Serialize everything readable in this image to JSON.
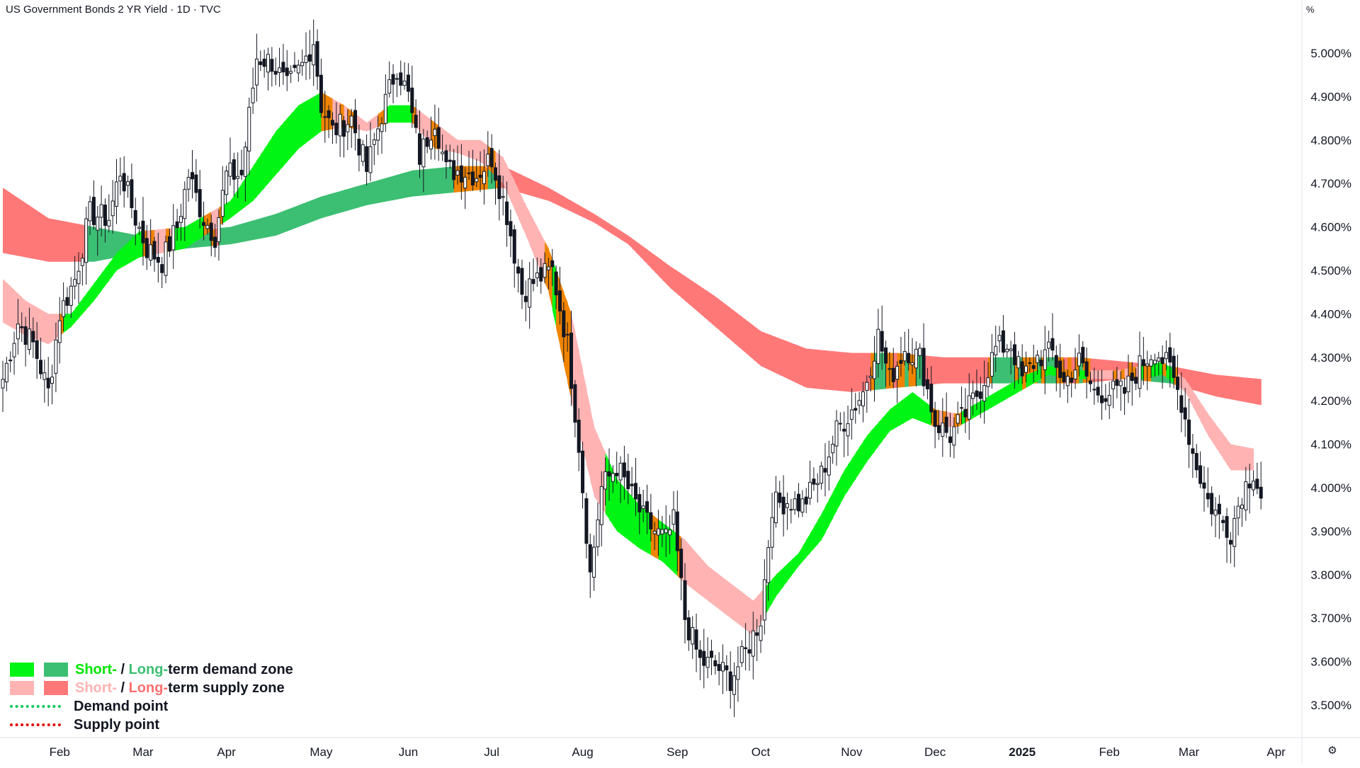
{
  "header": {
    "title": "US Government Bonds 2 YR Yield · 1D · TVC"
  },
  "axis": {
    "unit_label": "%"
  },
  "legend": {
    "row1": {
      "short": "Short-",
      "sep": " / ",
      "long": "Long-",
      "rest": "term demand zone"
    },
    "row2": {
      "short": "Short-",
      "sep": " / ",
      "long": "Long-",
      "rest": "term supply zone"
    },
    "row3": "Demand point",
    "row4": "Supply point"
  },
  "colors": {
    "short_demand": "#00f514",
    "long_demand": "#3cbf72",
    "short_supply": "#ffb3b3",
    "long_supply": "#ff7878",
    "neutral_zone": "#f08400",
    "candle": "#131722"
  },
  "settings_icon": "gear-icon",
  "chart_data": {
    "type": "candlestick",
    "y_unit": "%",
    "ylim": [
      3.445,
      5.06
    ],
    "y_ticks": [
      {
        "v": 5.0,
        "label": "5.000%"
      },
      {
        "v": 4.9,
        "label": "4.900%"
      },
      {
        "v": 4.8,
        "label": "4.800%"
      },
      {
        "v": 4.7,
        "label": "4.700%"
      },
      {
        "v": 4.6,
        "label": "4.600%"
      },
      {
        "v": 4.5,
        "label": "4.500%"
      },
      {
        "v": 4.4,
        "label": "4.400%"
      },
      {
        "v": 4.3,
        "label": "4.300%"
      },
      {
        "v": 4.2,
        "label": "4.200%"
      },
      {
        "v": 4.1,
        "label": "4.100%"
      },
      {
        "v": 4.0,
        "label": "4.000%"
      },
      {
        "v": 3.9,
        "label": "3.900%"
      },
      {
        "v": 3.8,
        "label": "3.800%"
      },
      {
        "v": 3.7,
        "label": "3.700%"
      },
      {
        "v": 3.6,
        "label": "3.600%"
      },
      {
        "v": 3.5,
        "label": "3.500%"
      }
    ],
    "x_range": [
      0,
      344
    ],
    "x_ticks": [
      {
        "t": 15,
        "label": "Feb"
      },
      {
        "t": 37,
        "label": "Mar"
      },
      {
        "t": 59,
        "label": "Apr"
      },
      {
        "t": 84,
        "label": "May"
      },
      {
        "t": 107,
        "label": "Jun"
      },
      {
        "t": 129,
        "label": "Jul"
      },
      {
        "t": 153,
        "label": "Aug"
      },
      {
        "t": 178,
        "label": "Sep"
      },
      {
        "t": 200,
        "label": "Oct"
      },
      {
        "t": 224,
        "label": "Nov"
      },
      {
        "t": 246,
        "label": "Dec"
      },
      {
        "t": 269,
        "label": "2025"
      },
      {
        "t": 292,
        "label": "Feb"
      },
      {
        "t": 313,
        "label": "Mar"
      },
      {
        "t": 336,
        "label": "Apr"
      }
    ],
    "path": [
      [
        0,
        4.25
      ],
      [
        4,
        4.38
      ],
      [
        8,
        4.33
      ],
      [
        12,
        4.22
      ],
      [
        15,
        4.4
      ],
      [
        19,
        4.48
      ],
      [
        23,
        4.63
      ],
      [
        28,
        4.62
      ],
      [
        31,
        4.73
      ],
      [
        35,
        4.62
      ],
      [
        38,
        4.55
      ],
      [
        42,
        4.52
      ],
      [
        46,
        4.6
      ],
      [
        49,
        4.72
      ],
      [
        53,
        4.62
      ],
      [
        56,
        4.58
      ],
      [
        59,
        4.72
      ],
      [
        63,
        4.72
      ],
      [
        67,
        4.99
      ],
      [
        71,
        4.98
      ],
      [
        75,
        4.92
      ],
      [
        79,
        4.97
      ],
      [
        82,
        5.03
      ],
      [
        84,
        4.88
      ],
      [
        87,
        4.82
      ],
      [
        92,
        4.85
      ],
      [
        96,
        4.73
      ],
      [
        100,
        4.86
      ],
      [
        104,
        4.97
      ],
      [
        107,
        4.9
      ],
      [
        110,
        4.76
      ],
      [
        114,
        4.85
      ],
      [
        117,
        4.73
      ],
      [
        121,
        4.73
      ],
      [
        125,
        4.72
      ],
      [
        129,
        4.76
      ],
      [
        133,
        4.63
      ],
      [
        137,
        4.45
      ],
      [
        141,
        4.48
      ],
      [
        145,
        4.5
      ],
      [
        149,
        4.33
      ],
      [
        152,
        4.1
      ],
      [
        155,
        3.8
      ],
      [
        158,
        4.0
      ],
      [
        162,
        4.05
      ],
      [
        166,
        3.98
      ],
      [
        169,
        3.93
      ],
      [
        172,
        3.9
      ],
      [
        175,
        3.88
      ],
      [
        177,
        3.92
      ],
      [
        180,
        3.7
      ],
      [
        184,
        3.6
      ],
      [
        188,
        3.59
      ],
      [
        192,
        3.56
      ],
      [
        196,
        3.62
      ],
      [
        200,
        3.7
      ],
      [
        203,
        3.96
      ],
      [
        207,
        3.97
      ],
      [
        211,
        3.96
      ],
      [
        216,
        4.03
      ],
      [
        220,
        4.13
      ],
      [
        224,
        4.18
      ],
      [
        227,
        4.22
      ],
      [
        231,
        4.35
      ],
      [
        234,
        4.25
      ],
      [
        238,
        4.32
      ],
      [
        242,
        4.3
      ],
      [
        246,
        4.15
      ],
      [
        250,
        4.12
      ],
      [
        254,
        4.17
      ],
      [
        258,
        4.23
      ],
      [
        262,
        4.32
      ],
      [
        266,
        4.33
      ],
      [
        269,
        4.25
      ],
      [
        273,
        4.3
      ],
      [
        277,
        4.31
      ],
      [
        280,
        4.24
      ],
      [
        284,
        4.29
      ],
      [
        288,
        4.22
      ],
      [
        292,
        4.22
      ],
      [
        296,
        4.22
      ],
      [
        300,
        4.28
      ],
      [
        304,
        4.32
      ],
      [
        308,
        4.27
      ],
      [
        311,
        4.2
      ],
      [
        314,
        4.08
      ],
      [
        318,
        3.97
      ],
      [
        321,
        3.93
      ],
      [
        324,
        3.9
      ],
      [
        327,
        3.99
      ],
      [
        330,
        4.04
      ],
      [
        332,
        3.98
      ]
    ],
    "long_band": [
      [
        0,
        4.69,
        4.54
      ],
      [
        12,
        4.62,
        4.52
      ],
      [
        24,
        4.6,
        4.52
      ],
      [
        36,
        4.58,
        4.54
      ],
      [
        48,
        4.59,
        4.55
      ],
      [
        60,
        4.6,
        4.56
      ],
      [
        72,
        4.63,
        4.58
      ],
      [
        84,
        4.67,
        4.62
      ],
      [
        96,
        4.7,
        4.65
      ],
      [
        108,
        4.73,
        4.67
      ],
      [
        120,
        4.74,
        4.68
      ],
      [
        132,
        4.74,
        4.69
      ],
      [
        144,
        4.69,
        4.66
      ],
      [
        156,
        4.63,
        4.61
      ],
      [
        165,
        4.58,
        4.56
      ],
      [
        176,
        4.51,
        4.46
      ],
      [
        188,
        4.44,
        4.37
      ],
      [
        200,
        4.36,
        4.28
      ],
      [
        212,
        4.32,
        4.23
      ],
      [
        224,
        4.31,
        4.22
      ],
      [
        236,
        4.31,
        4.23
      ],
      [
        248,
        4.3,
        4.24
      ],
      [
        260,
        4.3,
        4.24
      ],
      [
        272,
        4.3,
        4.24
      ],
      [
        284,
        4.3,
        4.24
      ],
      [
        296,
        4.29,
        4.25
      ],
      [
        308,
        4.28,
        4.24
      ],
      [
        320,
        4.26,
        4.21
      ],
      [
        332,
        4.25,
        4.19
      ]
    ],
    "short_band": [
      [
        0,
        4.48,
        4.38
      ],
      [
        6,
        4.43,
        4.35
      ],
      [
        12,
        4.4,
        4.33
      ],
      [
        18,
        4.4,
        4.37
      ],
      [
        24,
        4.47,
        4.43
      ],
      [
        30,
        4.54,
        4.5
      ],
      [
        36,
        4.59,
        4.53
      ],
      [
        48,
        4.6,
        4.55
      ],
      [
        60,
        4.66,
        4.62
      ],
      [
        66,
        4.74,
        4.66
      ],
      [
        72,
        4.82,
        4.72
      ],
      [
        78,
        4.88,
        4.78
      ],
      [
        84,
        4.91,
        4.82
      ],
      [
        90,
        4.88,
        4.83
      ],
      [
        96,
        4.84,
        4.82
      ],
      [
        102,
        4.88,
        4.84
      ],
      [
        108,
        4.88,
        4.84
      ],
      [
        114,
        4.84,
        4.78
      ],
      [
        120,
        4.8,
        4.77
      ],
      [
        126,
        4.8,
        4.75
      ],
      [
        132,
        4.76,
        4.7
      ],
      [
        138,
        4.65,
        4.58
      ],
      [
        144,
        4.55,
        4.45
      ],
      [
        150,
        4.4,
        4.2
      ],
      [
        156,
        4.14,
        3.98
      ],
      [
        162,
        4.02,
        3.9
      ],
      [
        168,
        3.96,
        3.86
      ],
      [
        174,
        3.92,
        3.83
      ],
      [
        180,
        3.88,
        3.78
      ],
      [
        186,
        3.82,
        3.74
      ],
      [
        192,
        3.78,
        3.7
      ],
      [
        198,
        3.74,
        3.66
      ],
      [
        204,
        3.8,
        3.75
      ],
      [
        210,
        3.85,
        3.82
      ],
      [
        216,
        3.94,
        3.88
      ],
      [
        222,
        4.04,
        3.98
      ],
      [
        228,
        4.12,
        4.06
      ],
      [
        234,
        4.18,
        4.13
      ],
      [
        240,
        4.22,
        4.16
      ],
      [
        246,
        4.18,
        4.14
      ],
      [
        252,
        4.17,
        4.14
      ],
      [
        258,
        4.2,
        4.17
      ],
      [
        264,
        4.23,
        4.2
      ],
      [
        270,
        4.26,
        4.23
      ],
      [
        276,
        4.28,
        4.26
      ],
      [
        282,
        4.27,
        4.25
      ],
      [
        288,
        4.27,
        4.25
      ],
      [
        294,
        4.27,
        4.25
      ],
      [
        300,
        4.28,
        4.25
      ],
      [
        306,
        4.29,
        4.26
      ],
      [
        312,
        4.25,
        4.22
      ],
      [
        318,
        4.17,
        4.12
      ],
      [
        324,
        4.1,
        4.04
      ],
      [
        330,
        4.09,
        4.04
      ]
    ],
    "candles": {
      "count": 333,
      "style": "hollow-up / filled-down daily OHLC, generated along path"
    }
  }
}
